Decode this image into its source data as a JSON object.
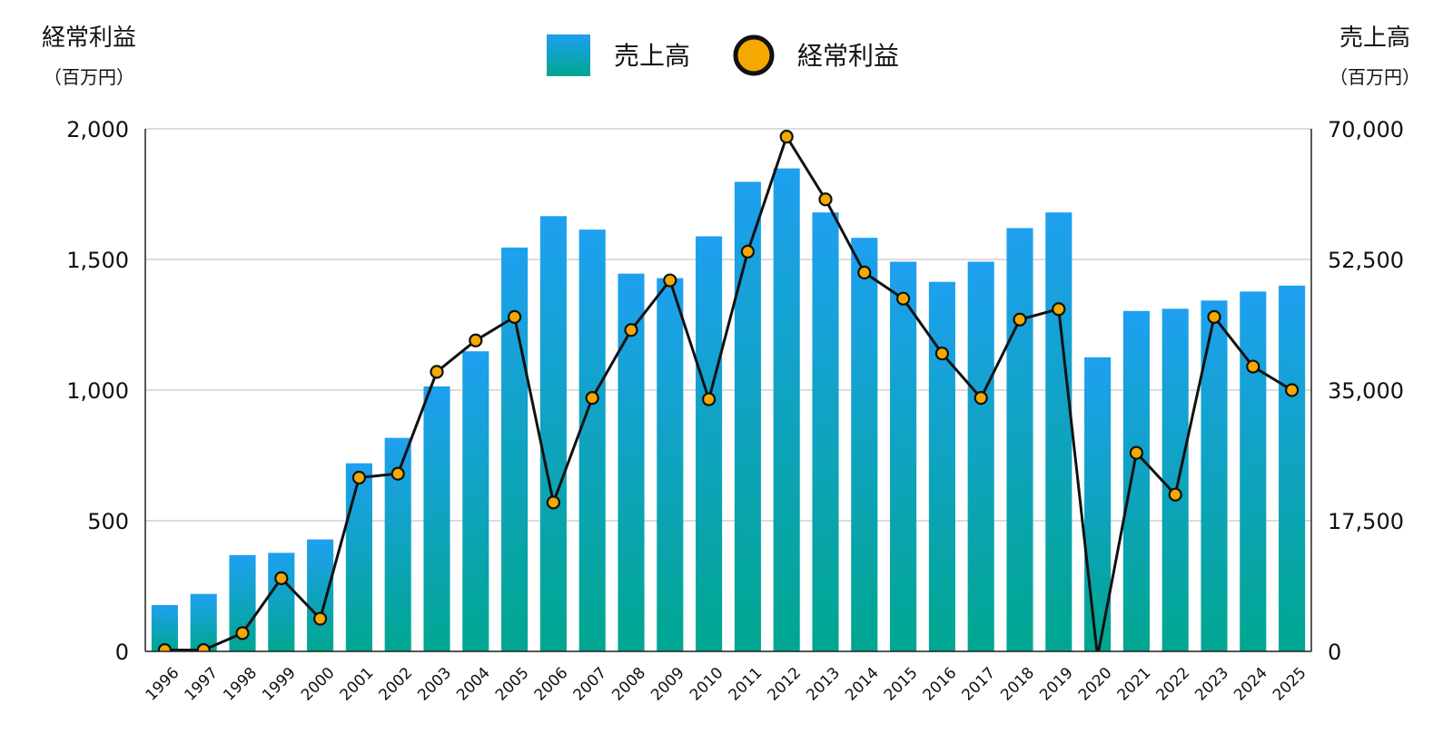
{
  "chart_data": {
    "type": "bar",
    "left_axis": {
      "title": "経常利益",
      "unit": "（百万円）",
      "ticks": [
        "0",
        "500",
        "1,000",
        "1,500",
        "2,000"
      ],
      "ylim": [
        0,
        2000
      ]
    },
    "right_axis": {
      "title": "売上高",
      "unit": "（百万円）",
      "ticks": [
        "0",
        "17,500",
        "35,000",
        "52,500",
        "70,000"
      ],
      "ylim": [
        0,
        70000
      ]
    },
    "legend": [
      {
        "label": "売上高",
        "marker": "bar"
      },
      {
        "label": "経常利益",
        "marker": "circle"
      }
    ],
    "categories": [
      "1996",
      "1997",
      "1998",
      "1999",
      "2000",
      "2001",
      "2002",
      "2003",
      "2004",
      "2005",
      "2006",
      "2007",
      "2008",
      "2009",
      "2010",
      "2011",
      "2012",
      "2013",
      "2014",
      "2015",
      "2016",
      "2017",
      "2018",
      "2019",
      "2020",
      "2021",
      "2022",
      "2023",
      "2024",
      "2025"
    ],
    "series": [
      {
        "name": "売上高",
        "type": "bar",
        "axis": "right",
        "color_top": "#1ea0f0",
        "color_bottom": "#00a68f",
        "values": [
          6200,
          7700,
          12900,
          13200,
          15000,
          25200,
          28600,
          35500,
          40200,
          54100,
          58300,
          56500,
          50600,
          50000,
          55600,
          62900,
          64700,
          58800,
          55400,
          52200,
          49500,
          52200,
          56700,
          58800,
          39400,
          45600,
          45900,
          47000,
          48200,
          49000
        ]
      },
      {
        "name": "経常利益",
        "type": "line",
        "axis": "left",
        "line_color": "#111111",
        "marker_color": "#f5a800",
        "values": [
          5,
          5,
          70,
          280,
          125,
          665,
          680,
          1070,
          1190,
          1280,
          570,
          970,
          1230,
          1420,
          965,
          1530,
          1970,
          1730,
          1450,
          1350,
          1140,
          970,
          1270,
          1310,
          -20,
          760,
          600,
          1280,
          1090,
          1000
        ]
      }
    ]
  }
}
